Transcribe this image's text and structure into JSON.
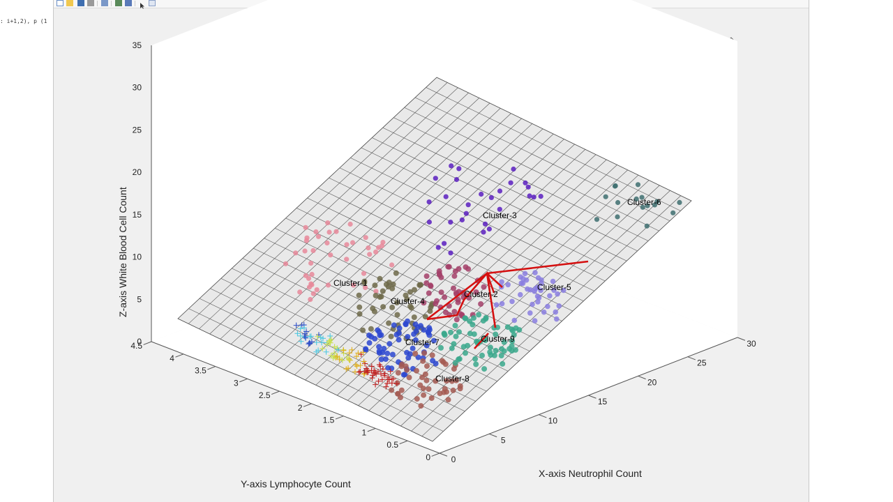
{
  "editor": {
    "code_snippet": ": i+1,2), p (1"
  },
  "chart_data": {
    "type": "scatter",
    "projection": "3d",
    "title": "",
    "xlabel": "X-axis Neutrophil Count",
    "ylabel": "Y-axis Lymphocyte Count",
    "zlabel": "Z-axis White Blood Cell Count",
    "xlim": [
      0,
      30
    ],
    "ylim": [
      0,
      4.5
    ],
    "zlim": [
      0,
      35
    ],
    "xticks": [
      "0",
      "5",
      "10",
      "15",
      "20",
      "25",
      "30"
    ],
    "yticks": [
      "0",
      "0.5",
      "1",
      "1.5",
      "2",
      "2.5",
      "3",
      "3.5",
      "4",
      "4.5"
    ],
    "zticks": [
      "0",
      "5",
      "10",
      "15",
      "20",
      "25",
      "30",
      "35"
    ],
    "grid": true,
    "surface": "regression plane (gray grid)",
    "clusters": [
      {
        "name": "Cluster-1",
        "color": "#e8889a",
        "label_pos": [
          3.5,
          3.5,
          12
        ]
      },
      {
        "name": "Cluster-2",
        "color": "#a34068",
        "label_pos": [
          14,
          2.2,
          14
        ]
      },
      {
        "name": "Cluster-3",
        "color": "#5a1fc0",
        "label_pos": [
          18,
          2.5,
          26
        ]
      },
      {
        "name": "Cluster-4",
        "color": "#6e6a4a",
        "label_pos": [
          7.5,
          2.3,
          11
        ]
      },
      {
        "name": "Cluster-5",
        "color": "#8a7ee0",
        "label_pos": [
          19,
          1.5,
          18
        ]
      },
      {
        "name": "Cluster-6",
        "color": "#3e6f70",
        "label_pos": [
          28,
          2.5,
          30
        ]
      },
      {
        "name": "Cluster-7",
        "color": "#2b47d0",
        "label_pos": [
          8,
          1.6,
          7
        ]
      },
      {
        "name": "Cluster-8",
        "color": "#a45a52",
        "label_pos": [
          9,
          1.0,
          5
        ]
      },
      {
        "name": "Cluster-9",
        "color": "#3aa88c",
        "label_pos": [
          13,
          1.3,
          10
        ]
      }
    ]
  }
}
